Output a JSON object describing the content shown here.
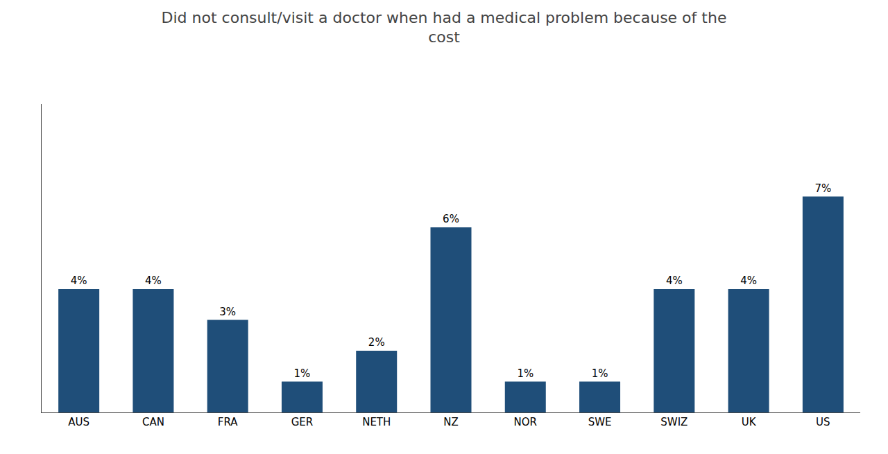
{
  "chart_data": {
    "type": "bar",
    "title": "Did not consult/visit a doctor when had a medical problem because of the\ncost",
    "categories": [
      "AUS",
      "CAN",
      "FRA",
      "GER",
      "NETH",
      "NZ",
      "NOR",
      "SWE",
      "SWIZ",
      "UK",
      "US"
    ],
    "values": [
      4,
      4,
      3,
      1,
      2,
      6,
      1,
      1,
      4,
      4,
      7
    ],
    "value_labels": [
      "4%",
      "4%",
      "3%",
      "1%",
      "2%",
      "6%",
      "1%",
      "1%",
      "4%",
      "4%",
      "7%"
    ],
    "data_labels": true,
    "color": "#1F4E79",
    "ylim": [
      0,
      10
    ],
    "grid": false,
    "tick_labels": "x"
  }
}
